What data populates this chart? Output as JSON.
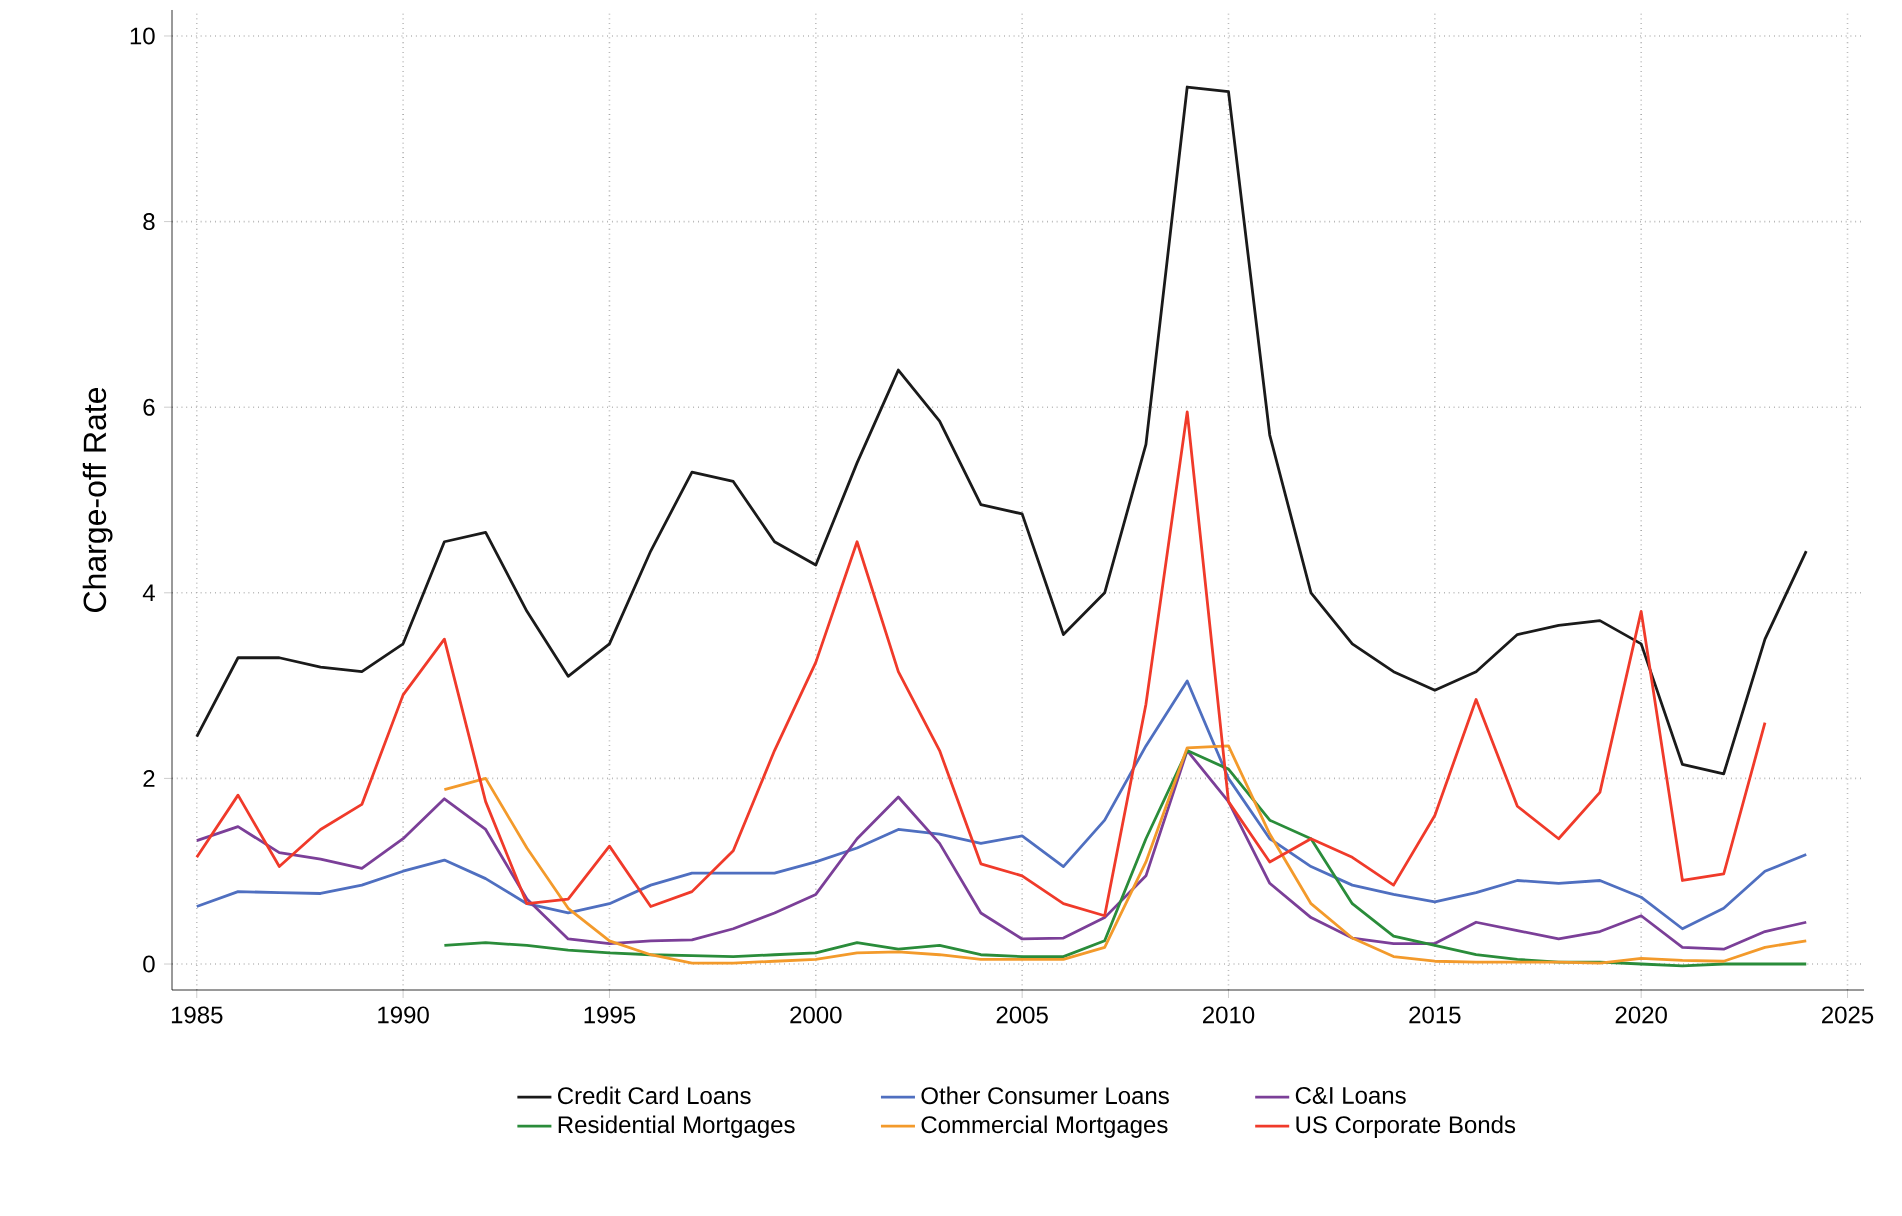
{
  "chart_data": {
    "type": "line",
    "ylabel": "Charge-off Rate",
    "x": [
      1985,
      1986,
      1987,
      1988,
      1989,
      1990,
      1991,
      1992,
      1993,
      1994,
      1995,
      1996,
      1997,
      1998,
      1999,
      2000,
      2001,
      2002,
      2003,
      2004,
      2005,
      2006,
      2007,
      2008,
      2009,
      2010,
      2011,
      2012,
      2013,
      2014,
      2015,
      2016,
      2017,
      2018,
      2019,
      2020,
      2021,
      2022,
      2023,
      2024
    ],
    "series": [
      {
        "name": "Credit Card Loans",
        "color": "#1a1a1a",
        "values": [
          2.45,
          3.3,
          3.3,
          3.2,
          3.15,
          3.45,
          4.55,
          4.65,
          3.8,
          3.1,
          3.45,
          4.45,
          5.3,
          5.2,
          4.55,
          4.3,
          5.4,
          6.4,
          5.85,
          4.95,
          4.85,
          3.55,
          4.0,
          5.6,
          9.45,
          9.4,
          5.7,
          4.0,
          3.45,
          3.15,
          2.95,
          3.15,
          3.55,
          3.65,
          3.7,
          3.45,
          2.15,
          2.05,
          3.5,
          4.45
        ]
      },
      {
        "name": "Other Consumer Loans",
        "color": "#4f6fc0",
        "values": [
          0.62,
          0.78,
          0.77,
          0.76,
          0.85,
          1.0,
          1.12,
          0.92,
          0.65,
          0.55,
          0.65,
          0.85,
          0.98,
          0.98,
          0.98,
          1.1,
          1.25,
          1.45,
          1.4,
          1.3,
          1.38,
          1.05,
          1.55,
          2.35,
          3.05,
          2.0,
          1.35,
          1.05,
          0.85,
          0.75,
          0.67,
          0.77,
          0.9,
          0.87,
          0.9,
          0.72,
          0.38,
          0.6,
          1.0,
          1.18
        ]
      },
      {
        "name": "C&I Loans",
        "color": "#7b3f98",
        "values": [
          1.33,
          1.48,
          1.2,
          1.13,
          1.03,
          1.35,
          1.78,
          1.45,
          0.7,
          0.27,
          0.22,
          0.25,
          0.26,
          0.38,
          0.55,
          0.75,
          1.35,
          1.8,
          1.3,
          0.55,
          0.27,
          0.28,
          0.5,
          0.95,
          2.3,
          1.75,
          0.87,
          0.5,
          0.28,
          0.22,
          0.22,
          0.45,
          0.36,
          0.27,
          0.35,
          0.52,
          0.18,
          0.16,
          0.35,
          0.45
        ]
      },
      {
        "name": "Residential Mortgages",
        "color": "#2a8c3a",
        "values": [
          null,
          null,
          null,
          null,
          null,
          null,
          0.2,
          0.23,
          0.2,
          0.15,
          0.12,
          0.1,
          0.09,
          0.08,
          0.1,
          0.12,
          0.23,
          0.16,
          0.2,
          0.1,
          0.08,
          0.08,
          0.25,
          1.35,
          2.3,
          2.1,
          1.55,
          1.35,
          0.65,
          0.3,
          0.2,
          0.1,
          0.05,
          0.02,
          0.02,
          0.0,
          -0.02,
          0.0,
          0.0,
          0.0
        ]
      },
      {
        "name": "Commercial Mortgages",
        "color": "#f39a2b",
        "values": [
          null,
          null,
          null,
          null,
          null,
          null,
          1.88,
          2.0,
          1.25,
          0.6,
          0.25,
          0.1,
          0.01,
          0.01,
          0.03,
          0.05,
          0.12,
          0.13,
          0.1,
          0.05,
          0.05,
          0.05,
          0.18,
          1.1,
          2.33,
          2.35,
          1.4,
          0.65,
          0.28,
          0.08,
          0.03,
          0.02,
          0.02,
          0.02,
          0.01,
          0.06,
          0.04,
          0.03,
          0.18,
          0.25
        ]
      },
      {
        "name": "US Corporate Bonds",
        "color": "#f03a2a",
        "values": [
          1.15,
          1.82,
          1.05,
          1.45,
          1.72,
          2.9,
          3.5,
          1.75,
          0.65,
          0.7,
          1.27,
          0.62,
          0.78,
          1.22,
          2.3,
          3.25,
          4.55,
          3.15,
          2.3,
          1.08,
          0.95,
          0.65,
          0.52,
          2.8,
          5.95,
          1.75,
          1.1,
          1.35,
          1.15,
          0.85,
          1.6,
          2.85,
          1.7,
          1.35,
          1.85,
          3.8,
          0.9,
          0.97,
          2.6,
          null
        ]
      }
    ],
    "xlim": [
      1984.4,
      2025.4
    ],
    "ylim": [
      -0.28,
      10.28
    ],
    "xticks": [
      1985,
      1990,
      1995,
      2000,
      2005,
      2010,
      2015,
      2020,
      2025
    ],
    "yticks": [
      0,
      2,
      4,
      6,
      8,
      10
    ],
    "grid": true,
    "legend": "bottom"
  }
}
